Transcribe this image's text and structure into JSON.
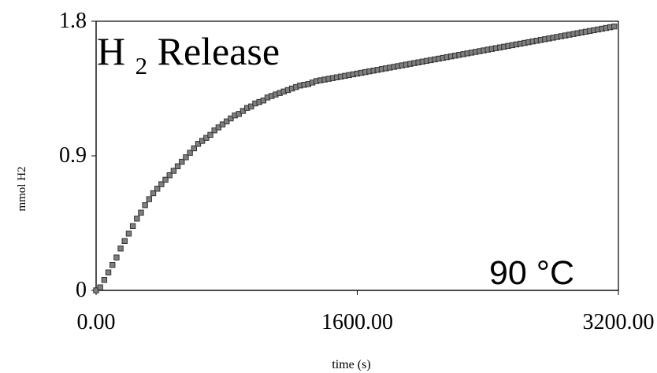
{
  "chart_data": {
    "type": "scatter",
    "ylabel": "mmol H2",
    "xlabel": "time (s)",
    "xlim": [
      0,
      3200
    ],
    "ylim": [
      0,
      1.8
    ],
    "x_ticks": [
      "0.00",
      "1600.00",
      "3200.00"
    ],
    "y_ticks": [
      "0",
      "0.9",
      "1.8"
    ],
    "annotation_title": {
      "main": "H",
      "subscript": "2",
      "rest": " Release"
    },
    "annotation_temp": "90 °C",
    "marker_color": "#7f7f7f",
    "marker_edge": "#333333",
    "grid": false,
    "legend": "none",
    "series": [
      {
        "x": [
          0,
          25,
          50,
          75,
          100,
          125,
          150,
          175,
          200,
          225,
          250,
          275,
          300,
          325,
          350,
          375,
          400,
          425,
          450,
          475,
          500,
          525,
          550,
          575,
          600,
          625,
          650,
          675,
          700,
          725,
          750,
          775,
          800,
          825,
          850,
          875,
          900,
          925,
          950,
          975,
          1000,
          1025,
          1050,
          1075,
          1100,
          1125,
          1150,
          1175,
          1200,
          1225,
          1250,
          1275,
          1300,
          1325,
          1350,
          1375,
          1400,
          1425,
          1450,
          1475,
          1500,
          1525,
          1550,
          1575,
          1600,
          1625,
          1650,
          1675,
          1700,
          1725,
          1750,
          1775,
          1800,
          1825,
          1850,
          1875,
          1900,
          1925,
          1950,
          1975,
          2000,
          2025,
          2050,
          2075,
          2100,
          2125,
          2150,
          2175,
          2200,
          2225,
          2250,
          2275,
          2300,
          2325,
          2350,
          2375,
          2400,
          2425,
          2450,
          2475,
          2500,
          2525,
          2550,
          2575,
          2600,
          2625,
          2650,
          2675,
          2700,
          2725,
          2750,
          2775,
          2800,
          2825,
          2850,
          2875,
          2900,
          2925,
          2950,
          2975,
          3000,
          3025,
          3050,
          3075,
          3100,
          3125,
          3150,
          3175
        ],
        "y": [
          0.0,
          0.02,
          0.07,
          0.12,
          0.17,
          0.22,
          0.28,
          0.33,
          0.38,
          0.43,
          0.48,
          0.52,
          0.57,
          0.61,
          0.65,
          0.68,
          0.71,
          0.74,
          0.77,
          0.8,
          0.83,
          0.86,
          0.89,
          0.92,
          0.95,
          0.98,
          1.0,
          1.02,
          1.04,
          1.07,
          1.09,
          1.11,
          1.13,
          1.15,
          1.17,
          1.18,
          1.2,
          1.22,
          1.23,
          1.25,
          1.26,
          1.27,
          1.29,
          1.3,
          1.31,
          1.32,
          1.33,
          1.34,
          1.35,
          1.36,
          1.37,
          1.375,
          1.38,
          1.39,
          1.4,
          1.405,
          1.41,
          1.415,
          1.42,
          1.425,
          1.43,
          1.435,
          1.44,
          1.445,
          1.45,
          1.455,
          1.46,
          1.465,
          1.47,
          1.475,
          1.48,
          1.485,
          1.49,
          1.495,
          1.5,
          1.505,
          1.51,
          1.515,
          1.52,
          1.525,
          1.53,
          1.535,
          1.54,
          1.545,
          1.55,
          1.555,
          1.56,
          1.565,
          1.57,
          1.575,
          1.58,
          1.585,
          1.59,
          1.595,
          1.6,
          1.605,
          1.61,
          1.615,
          1.62,
          1.625,
          1.63,
          1.635,
          1.64,
          1.645,
          1.65,
          1.655,
          1.66,
          1.665,
          1.67,
          1.675,
          1.68,
          1.685,
          1.69,
          1.695,
          1.7,
          1.705,
          1.71,
          1.715,
          1.72,
          1.725,
          1.73,
          1.735,
          1.74,
          1.745,
          1.75,
          1.755,
          1.76,
          1.765
        ]
      }
    ]
  }
}
